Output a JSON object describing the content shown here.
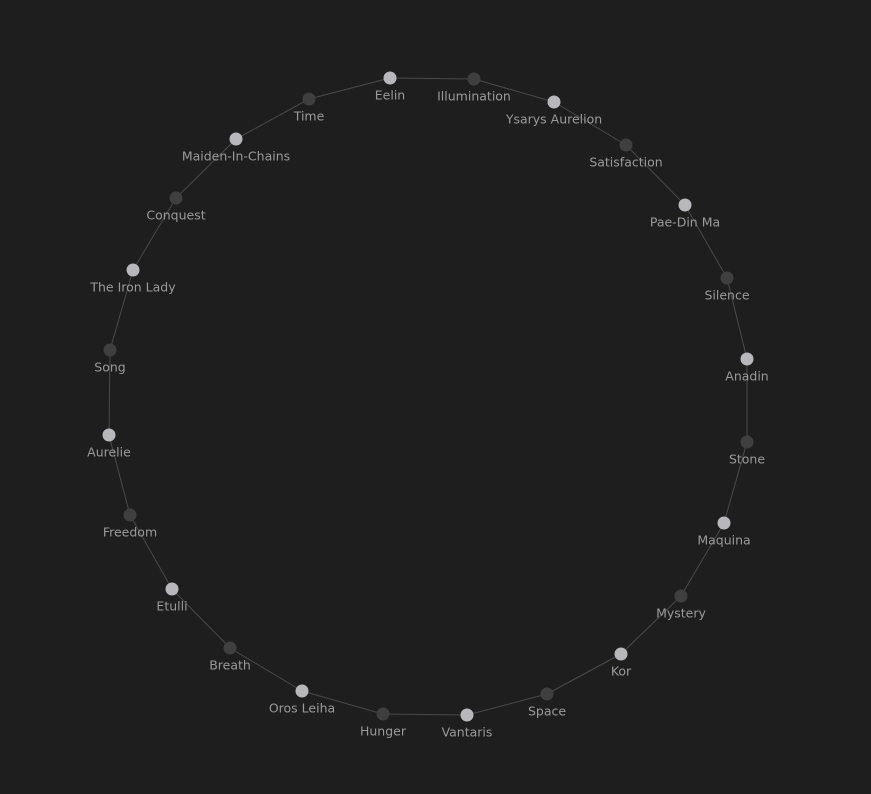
{
  "graph": {
    "colors": {
      "background": "#1e1e1e",
      "edge": "#4a4a4a",
      "node_light": "#b8b8bc",
      "node_dark": "#3f3f3f",
      "label": "#9a9a9a"
    },
    "nodes": [
      {
        "label": "Eelin",
        "shade": "light"
      },
      {
        "label": "Illumination",
        "shade": "dark"
      },
      {
        "label": "Ysarys Aurelion",
        "shade": "light"
      },
      {
        "label": "Satisfaction",
        "shade": "dark"
      },
      {
        "label": "Pae-Din Ma",
        "shade": "light"
      },
      {
        "label": "Silence",
        "shade": "dark"
      },
      {
        "label": "Anadin",
        "shade": "light"
      },
      {
        "label": "Stone",
        "shade": "dark"
      },
      {
        "label": "Maquina",
        "shade": "light"
      },
      {
        "label": "Mystery",
        "shade": "dark"
      },
      {
        "label": "Kor",
        "shade": "light"
      },
      {
        "label": "Space",
        "shade": "dark"
      },
      {
        "label": "Vantaris",
        "shade": "light"
      },
      {
        "label": "Hunger",
        "shade": "dark"
      },
      {
        "label": "Oros Leiha",
        "shade": "light"
      },
      {
        "label": "Breath",
        "shade": "dark"
      },
      {
        "label": "Etulli",
        "shade": "light"
      },
      {
        "label": "Freedom",
        "shade": "dark"
      },
      {
        "label": "Aurelie",
        "shade": "light"
      },
      {
        "label": "Song",
        "shade": "dark"
      },
      {
        "label": "The Iron Lady",
        "shade": "light"
      },
      {
        "label": "Conquest",
        "shade": "dark"
      },
      {
        "label": "Maiden-In-Chains",
        "shade": "light"
      },
      {
        "label": "Time",
        "shade": "dark"
      }
    ]
  }
}
